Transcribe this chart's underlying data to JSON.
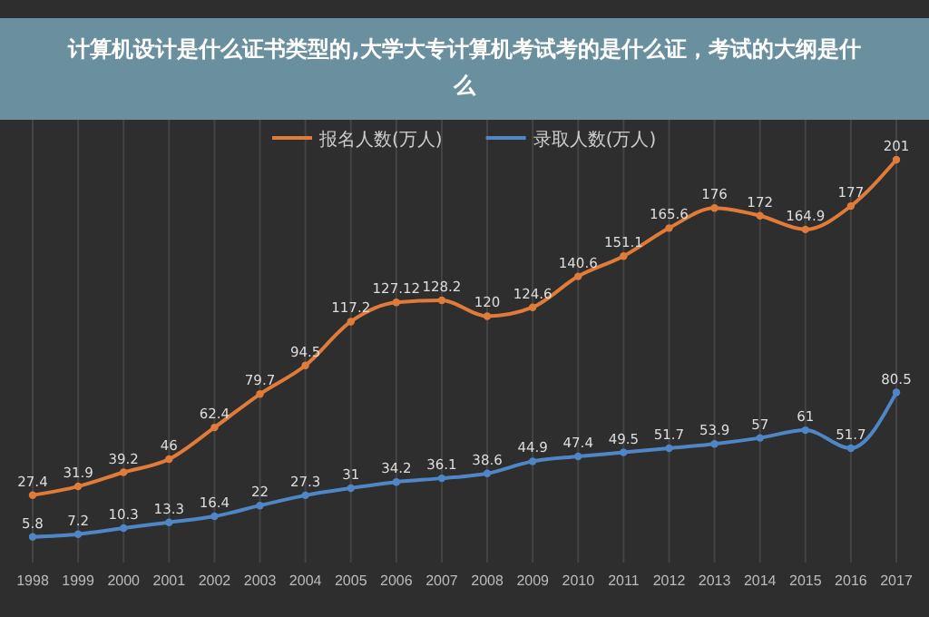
{
  "chart_data": {
    "type": "line",
    "title": "计算机设计是什么证书类型的,大学大专计算机考试考的是什么证，考试的大纲是什么",
    "categories": [
      "1998",
      "1999",
      "2000",
      "2001",
      "2002",
      "2003",
      "2004",
      "2005",
      "2006",
      "2007",
      "2008",
      "2009",
      "2010",
      "2011",
      "2012",
      "2013",
      "2014",
      "2015",
      "2016",
      "2017"
    ],
    "series": [
      {
        "name": "报名人数(万人)",
        "color": "#e07b39",
        "values": [
          27.4,
          31.9,
          39.2,
          46,
          62.4,
          79.7,
          94.5,
          117.2,
          127.12,
          128.2,
          120,
          124.6,
          140.6,
          151.1,
          165.6,
          176,
          172,
          164.9,
          177,
          201
        ]
      },
      {
        "name": "录取人数(万人)",
        "color": "#4f86c6",
        "values": [
          5.8,
          7.2,
          10.3,
          13.3,
          16.4,
          22,
          27.3,
          31,
          34.2,
          36.1,
          38.6,
          44.9,
          47.4,
          49.5,
          51.7,
          53.9,
          57,
          61,
          51.7,
          80.5
        ]
      }
    ],
    "data_labels": true,
    "grid": "x",
    "legend": "top",
    "marker": "circle",
    "line_style": "solid"
  }
}
